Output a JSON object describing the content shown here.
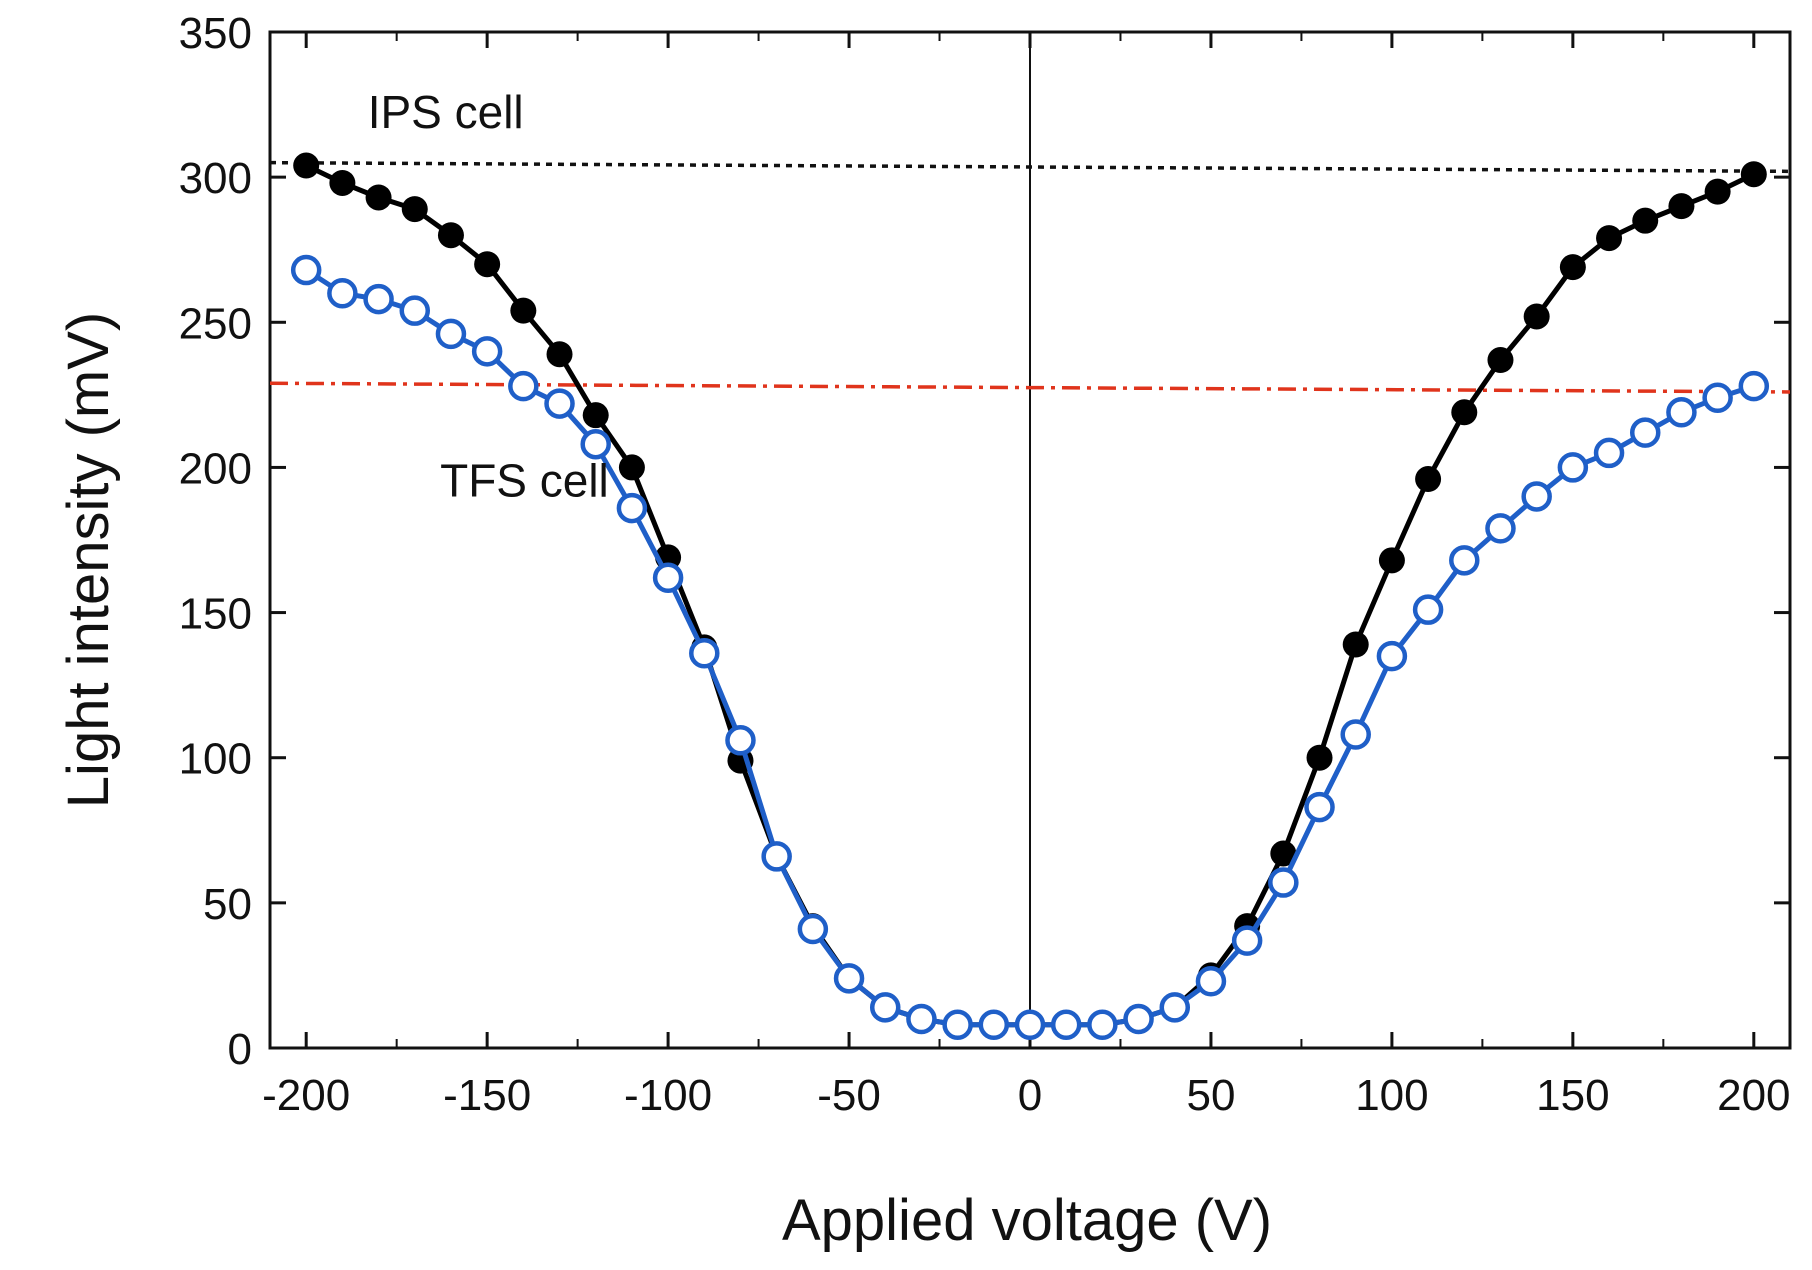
{
  "chart_data": {
    "type": "line",
    "title": "",
    "xlabel": "Applied voltage (V)",
    "ylabel": "Light intensity (mV)",
    "xlim": [
      -210,
      210
    ],
    "ylim": [
      0,
      350
    ],
    "x_ticks": [
      -200,
      -150,
      -100,
      -50,
      0,
      50,
      100,
      150,
      200
    ],
    "y_ticks": [
      0,
      50,
      100,
      150,
      200,
      250,
      300,
      350
    ],
    "x_tick_labels": [
      "-200",
      "-150",
      "-100",
      "-50",
      "0",
      "50",
      "100",
      "150",
      "200"
    ],
    "y_tick_labels": [
      "0",
      "50",
      "100",
      "150",
      "200",
      "250",
      "300",
      "350"
    ],
    "x": [
      -200,
      -190,
      -180,
      -170,
      -160,
      -150,
      -140,
      -130,
      -120,
      -110,
      -100,
      -90,
      -80,
      -70,
      -60,
      -50,
      -40,
      -30,
      -20,
      -10,
      0,
      10,
      20,
      30,
      40,
      50,
      60,
      70,
      80,
      90,
      100,
      110,
      120,
      130,
      140,
      150,
      160,
      170,
      180,
      190,
      200
    ],
    "series": [
      {
        "name": "IPS cell",
        "marker": "filled-circle",
        "color": "#000000",
        "values": [
          304,
          298,
          293,
          289,
          280,
          270,
          254,
          239,
          218,
          200,
          169,
          138,
          99,
          66,
          42,
          24,
          14,
          10,
          8,
          8,
          8,
          8,
          8,
          10,
          14,
          25,
          42,
          67,
          100,
          139,
          168,
          196,
          219,
          237,
          252,
          269,
          279,
          285,
          290,
          295,
          301
        ]
      },
      {
        "name": "TFS cell",
        "marker": "open-circle",
        "color": "#1f5fc8",
        "values": [
          268,
          260,
          258,
          254,
          246,
          240,
          228,
          222,
          208,
          186,
          162,
          136,
          106,
          66,
          41,
          24,
          14,
          10,
          8,
          8,
          8,
          8,
          8,
          10,
          14,
          23,
          37,
          57,
          83,
          108,
          135,
          151,
          168,
          179,
          190,
          200,
          205,
          212,
          219,
          224,
          228
        ]
      }
    ],
    "reference_lines": [
      {
        "name": "IPS cell max",
        "style": "dotted",
        "color": "#111111",
        "y_start": 305,
        "y_end": 302
      },
      {
        "name": "TFS cell max",
        "style": "dash-dot",
        "color": "#e0341c",
        "y_start": 229,
        "y_end": 226
      }
    ],
    "vertical_line_x": 0,
    "annotations": [
      {
        "text": "IPS cell",
        "x": -183,
        "y": 317
      },
      {
        "text": "TFS cell",
        "x": -163,
        "y": 190
      }
    ],
    "grid": false,
    "legend": "none"
  }
}
